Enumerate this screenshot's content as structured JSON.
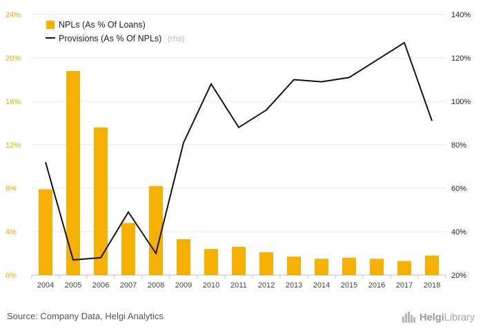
{
  "chart_data": {
    "type": "bar",
    "categories": [
      "2004",
      "2005",
      "2006",
      "2007",
      "2008",
      "2009",
      "2010",
      "2011",
      "2012",
      "2013",
      "2014",
      "2015",
      "2016",
      "2017",
      "2018"
    ],
    "series": [
      {
        "name": "NPLs (As % Of Loans)",
        "type": "bar",
        "axis": "left",
        "color": "#f5b000",
        "values": [
          7.9,
          18.8,
          13.6,
          4.8,
          8.2,
          3.3,
          2.4,
          2.6,
          2.1,
          1.7,
          1.5,
          1.6,
          1.5,
          1.3,
          1.8
        ]
      },
      {
        "name": "Provisions (As % Of NPLs)",
        "name_suffix": "(rhs)",
        "type": "line",
        "axis": "right",
        "color": "#111111",
        "values": [
          72,
          27,
          28,
          49,
          30,
          81,
          108,
          88,
          96,
          110,
          109,
          111,
          119,
          127,
          91
        ]
      }
    ],
    "y_left": {
      "ylim": [
        0,
        24
      ],
      "ticks": [
        "0%",
        "4%",
        "8%",
        "12%",
        "16%",
        "20%",
        "24%"
      ],
      "tick_values": [
        0,
        4,
        8,
        12,
        16,
        20,
        24
      ]
    },
    "y_right": {
      "ylim": [
        20,
        140
      ],
      "ticks": [
        "20%",
        "40%",
        "60%",
        "80%",
        "100%",
        "120%",
        "140%"
      ],
      "tick_values": [
        20,
        40,
        60,
        80,
        100,
        120,
        140
      ]
    },
    "grid": true,
    "legend_position": "top-left",
    "title": "",
    "xlabel": "",
    "ylabel": ""
  },
  "footer": {
    "source": "Source: Company Data, Helgi Analytics",
    "logo_text_a": "Helgi",
    "logo_text_b": "Library"
  }
}
